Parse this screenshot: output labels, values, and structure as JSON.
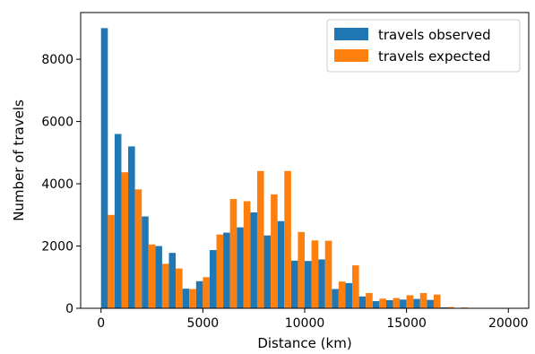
{
  "chart_data": {
    "type": "bar",
    "title": "",
    "xlabel": "Distance (km)",
    "ylabel": "Number of travels",
    "xlim": [
      -1000,
      21000
    ],
    "ylim": [
      0,
      9500
    ],
    "xticks": [
      0,
      5000,
      10000,
      15000,
      20000
    ],
    "yticks": [
      0,
      2000,
      4000,
      6000,
      8000
    ],
    "bin_width": 667,
    "bin_starts": [
      0,
      667,
      1333,
      2000,
      2667,
      3333,
      4000,
      4667,
      5333,
      6000,
      6667,
      7333,
      8000,
      8667,
      9333,
      10000,
      10667,
      11333,
      12000,
      12667,
      13333,
      14000,
      14667,
      15333,
      16000,
      16667,
      17333,
      18000,
      18667,
      19333
    ],
    "series": [
      {
        "name": "travels observed",
        "color": "#1f77b4",
        "values": [
          9000,
          5600,
          5200,
          2950,
          2000,
          1780,
          630,
          870,
          1870,
          2430,
          2600,
          3080,
          2340,
          2800,
          1530,
          1520,
          1570,
          620,
          810,
          380,
          230,
          260,
          280,
          300,
          270,
          30,
          10,
          5,
          5,
          0
        ]
      },
      {
        "name": "travels expected",
        "color": "#ff7f0e",
        "values": [
          3000,
          4370,
          3820,
          2050,
          1430,
          1280,
          620,
          1000,
          2370,
          3510,
          3440,
          4410,
          3660,
          4410,
          2450,
          2180,
          2170,
          860,
          1380,
          490,
          310,
          330,
          420,
          490,
          440,
          40,
          25,
          10,
          5,
          0
        ]
      }
    ],
    "legend": {
      "position": "top-right"
    },
    "grid": false
  }
}
